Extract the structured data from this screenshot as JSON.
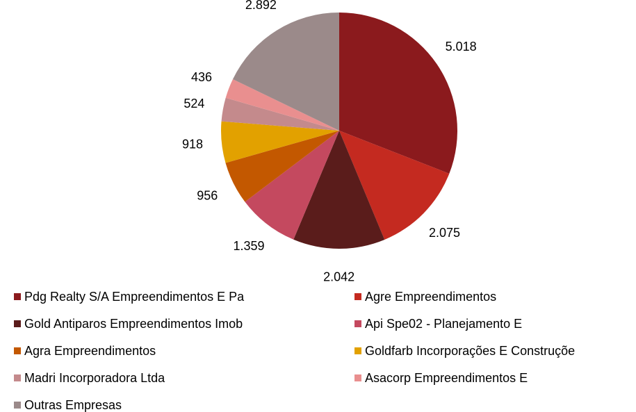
{
  "chart_data": {
    "type": "pie",
    "categories": [
      "Pdg Realty S/A Empreendimentos E Pa",
      "Agre Empreendimentos",
      "Gold Antiparos Empreendimentos Imob",
      "Api Spe02 - Planejamento E",
      "Agra Empreendimentos",
      "Goldfarb Incorporações E Construçõe",
      "Madri Incorporadora Ltda",
      "Asacorp Empreendimentos E",
      "Outras Empresas"
    ],
    "values": [
      5018,
      2075,
      2042,
      1359,
      956,
      918,
      524,
      436,
      2892
    ],
    "value_labels": [
      "5.018",
      "2.075",
      "2.042",
      "1.359",
      "956",
      "918",
      "524",
      "436",
      "2.892"
    ],
    "colors": [
      "#8b1a1d",
      "#c42a20",
      "#5a1c1b",
      "#c4495f",
      "#c35800",
      "#e2a100",
      "#c48a8c",
      "#e98f8f",
      "#9b8a8a"
    ],
    "legend": "bottom"
  }
}
